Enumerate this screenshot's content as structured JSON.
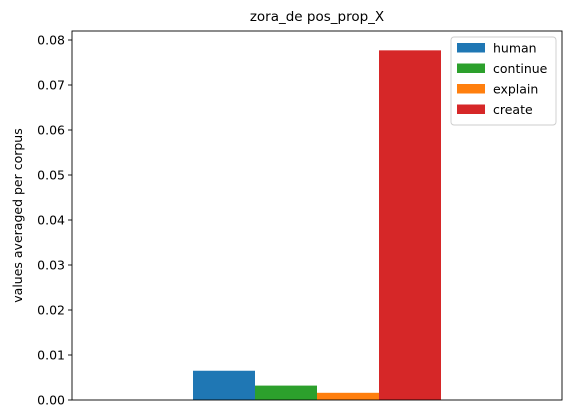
{
  "chart_data": {
    "type": "bar",
    "title": "zora_de pos_prop_X",
    "xlabel": "",
    "ylabel": "values averaged per corpus",
    "ylim": [
      0,
      0.082
    ],
    "yticks": [
      "0.00",
      "0.01",
      "0.02",
      "0.03",
      "0.04",
      "0.05",
      "0.06",
      "0.07",
      "0.08"
    ],
    "ytick_values": [
      0,
      0.01,
      0.02,
      0.03,
      0.04,
      0.05,
      0.06,
      0.07,
      0.08
    ],
    "categories": [
      ""
    ],
    "series": [
      {
        "name": "human",
        "values": [
          0.0065
        ],
        "color": "#1f77b4"
      },
      {
        "name": "continue",
        "values": [
          0.0032
        ],
        "color": "#2ca02c"
      },
      {
        "name": "explain",
        "values": [
          0.0016
        ],
        "color": "#ff7f0e"
      },
      {
        "name": "create",
        "values": [
          0.0777
        ],
        "color": "#d62728"
      }
    ],
    "legend": "top-right",
    "grid": false
  }
}
